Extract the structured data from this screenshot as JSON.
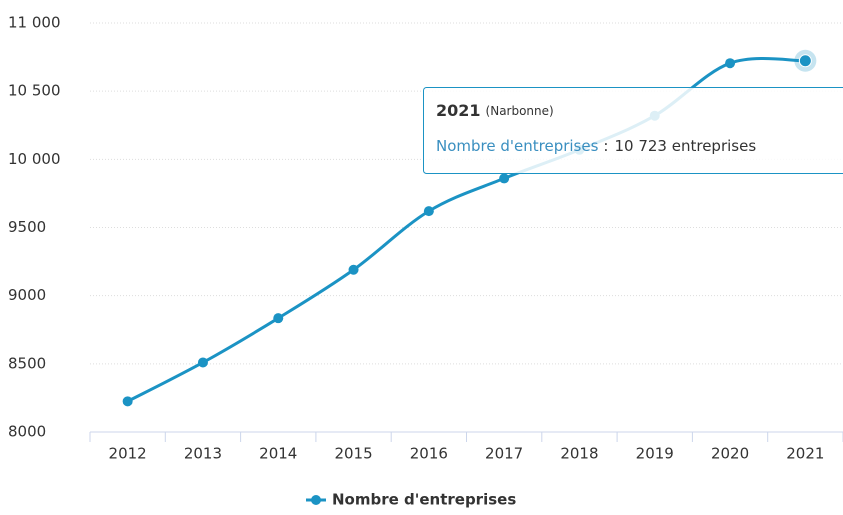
{
  "chart_data": {
    "type": "line",
    "categories": [
      "2012",
      "2013",
      "2014",
      "2015",
      "2016",
      "2017",
      "2018",
      "2019",
      "2020",
      "2021"
    ],
    "series": [
      {
        "name": "Nombre d'entreprises",
        "color": "#1b93c4",
        "values": [
          8225,
          8510,
          8835,
          9190,
          9620,
          9860,
          10070,
          10320,
          10705,
          10723
        ],
        "value_labels": [
          null,
          null,
          null,
          null,
          null,
          null,
          null,
          null,
          null,
          "10 723 entreprises"
        ]
      }
    ],
    "ylim": [
      8000,
      11000
    ],
    "yticks": [
      8000,
      8500,
      9000,
      9500,
      {
        "value": 10000,
        "label": "10 000"
      },
      {
        "value": 10500,
        "label": "10 500"
      },
      {
        "value": 11000,
        "label": "11 000"
      }
    ],
    "grid": true,
    "legend": "bottom",
    "tooltip": {
      "location": "(Narbonne)",
      "separator": ":"
    }
  }
}
